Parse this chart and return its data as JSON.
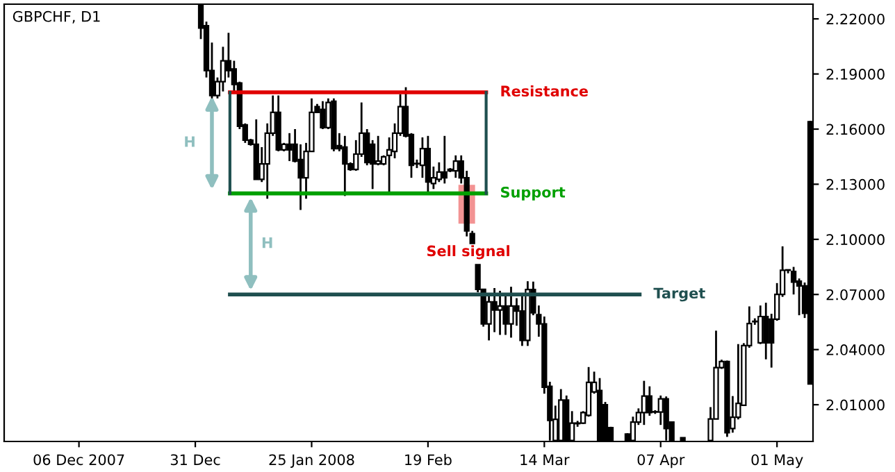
{
  "chart_data": {
    "type": "candlestick",
    "title": "GBPCHF, D1",
    "categories": [
      null,
      null,
      null,
      null,
      null,
      null,
      null,
      null,
      null,
      null,
      null,
      null,
      null,
      "06 Dec 2007",
      null,
      null,
      null,
      null,
      null,
      null,
      null,
      null,
      null,
      null,
      null,
      null,
      null,
      null,
      null,
      null,
      null,
      null,
      null,
      null,
      "31 Dec",
      null,
      null,
      null,
      null,
      null,
      null,
      null,
      null,
      null,
      null,
      null,
      null,
      null,
      null,
      null,
      null,
      null,
      null,
      null,
      null,
      "25 Jan 2008",
      null,
      null,
      null,
      null,
      null,
      null,
      null,
      null,
      null,
      null,
      null,
      null,
      null,
      null,
      null,
      null,
      null,
      null,
      null,
      null,
      "19 Feb",
      null,
      null,
      null,
      null,
      null,
      null,
      null,
      null,
      null,
      null,
      null,
      null,
      null,
      null,
      null,
      null,
      null,
      null,
      null,
      null,
      "14 Mar",
      null,
      null,
      null,
      null,
      null,
      null,
      null,
      null,
      null,
      null,
      null,
      null,
      null,
      null,
      null,
      null,
      null,
      null,
      null,
      null,
      "07 Apr",
      null,
      null,
      null,
      null,
      null,
      null,
      null,
      null,
      null,
      null,
      null,
      null,
      null,
      null,
      null,
      null,
      null,
      null,
      null,
      null,
      "01 May",
      null,
      null,
      null,
      null,
      null,
      null
    ],
    "ohlc": [
      null,
      null,
      null,
      null,
      null,
      null,
      null,
      null,
      null,
      null,
      null,
      null,
      null,
      null,
      null,
      null,
      null,
      null,
      null,
      null,
      null,
      null,
      null,
      null,
      null,
      null,
      null,
      null,
      null,
      null,
      null,
      null,
      null,
      null,
      null,
      [
        2.2275,
        2.2278,
        2.209,
        2.215
      ],
      [
        2.2162,
        2.2185,
        2.1881,
        2.1919
      ],
      [
        2.1919,
        2.2071,
        2.1767,
        2.1783
      ],
      [
        2.1783,
        2.1881,
        2.1767,
        2.1858
      ],
      [
        2.1858,
        2.2048,
        2.1805,
        2.1972
      ],
      [
        2.1972,
        2.2124,
        2.1881,
        2.1919
      ],
      [
        2.1927,
        2.1972,
        2.1805,
        2.1843
      ],
      [
        2.1851,
        2.1858,
        2.16,
        2.1616
      ],
      [
        2.1623,
        2.1631,
        2.1525,
        2.154
      ],
      [
        2.154,
        2.1547,
        2.151,
        2.1517
      ],
      [
        2.1517,
        2.1653,
        2.1327,
        2.1327
      ],
      [
        2.1327,
        2.1502,
        2.1312,
        2.1411
      ],
      [
        2.1411,
        2.1631,
        2.1221,
        2.1578
      ],
      [
        2.1578,
        2.1783,
        2.1563,
        2.1691
      ],
      [
        2.1691,
        2.1783,
        2.1479,
        2.1487
      ],
      [
        2.1487,
        2.1525,
        2.1479,
        2.1517
      ],
      [
        2.1517,
        2.1578,
        2.1426,
        2.1487
      ],
      [
        2.1517,
        2.16,
        2.1419,
        2.1426
      ],
      [
        2.1434,
        2.1517,
        2.116,
        2.1335
      ],
      [
        2.1335,
        2.1525,
        2.1221,
        2.1479
      ],
      [
        2.1479,
        2.1767,
        2.1479,
        2.1691
      ],
      [
        2.1722,
        2.1737,
        2.169,
        2.1691
      ],
      [
        2.1707,
        2.1752,
        2.16,
        2.1608
      ],
      [
        2.1608,
        2.1767,
        2.16,
        2.1745
      ],
      [
        2.1752,
        2.1767,
        2.1479,
        2.1494
      ],
      [
        2.151,
        2.1578,
        2.1479,
        2.1494
      ],
      [
        2.1502,
        2.1563,
        2.1236,
        2.1411
      ],
      [
        2.1411,
        2.1419,
        2.1373,
        2.138
      ],
      [
        2.138,
        2.154,
        2.1373,
        2.1464
      ],
      [
        2.1464,
        2.1745,
        2.1449,
        2.1578
      ],
      [
        2.1578,
        2.16,
        2.1403,
        2.1418
      ],
      [
        2.1517,
        2.154,
        2.1274,
        2.1411
      ],
      [
        2.1411,
        2.1563,
        2.1403,
        2.1426
      ],
      [
        2.1411,
        2.1457,
        2.1403,
        2.1449
      ],
      [
        2.1457,
        2.1555,
        2.1259,
        2.1487
      ],
      [
        2.1479,
        2.1631,
        2.1441,
        2.1578
      ],
      [
        2.1578,
        2.179,
        2.1563,
        2.1722
      ],
      [
        2.1722,
        2.1828,
        2.1555,
        2.1563
      ],
      [
        2.157,
        2.1578,
        2.1335,
        2.1403
      ],
      [
        2.1411,
        2.1434,
        2.1388,
        2.1411
      ],
      [
        2.1403,
        2.1555,
        2.1335,
        2.1494
      ],
      [
        2.1494,
        2.1563,
        2.1251,
        2.1312
      ],
      [
        2.1304,
        2.1396,
        2.1274,
        2.1335
      ],
      [
        2.1327,
        2.1419,
        2.1312,
        2.1366
      ],
      [
        2.1366,
        2.1563,
        2.1304,
        2.1335
      ],
      [
        2.1373,
        2.1388,
        2.1366,
        2.1381
      ],
      [
        2.1373,
        2.1457,
        2.1335,
        2.1426
      ],
      [
        2.1426,
        2.1457,
        2.1304,
        2.1335
      ],
      [
        2.1335,
        2.1373,
        2.1016,
        2.1046
      ],
      [
        2.1031,
        2.1046,
        2.0978,
        2.0978
      ],
      [
        2.0862,
        2.0862,
        2.0712,
        2.0728
      ],
      [
        2.0728,
        2.073,
        2.0525,
        2.054
      ],
      [
        2.054,
        2.069,
        2.045,
        2.066
      ],
      [
        2.066,
        2.0735,
        2.0495,
        2.0615
      ],
      [
        2.0615,
        2.072,
        2.048,
        2.0637
      ],
      [
        2.0637,
        2.0705,
        2.048,
        2.054
      ],
      [
        2.054,
        2.0742,
        2.0465,
        2.0637
      ],
      [
        2.0637,
        2.068,
        2.053,
        2.061
      ],
      [
        2.061,
        2.0705,
        2.042,
        2.045
      ],
      [
        2.045,
        2.0772,
        2.042,
        2.0727
      ],
      [
        2.0727,
        2.077,
        2.0587,
        2.06
      ],
      [
        2.059,
        2.064,
        2.047,
        2.054
      ],
      [
        2.054,
        2.058,
        2.016,
        2.0195
      ],
      [
        2.02,
        2.0225,
        1.9905,
        2.0015
      ],
      [
        1.9905,
        2.0095,
        1.9905,
        2.002
      ],
      [
        1.9905,
        2.0185,
        1.9905,
        2.0125
      ],
      [
        2.0125,
        2.015,
        1.9905,
        1.9905
      ],
      [
        1.9905,
        2.0065,
        1.9905,
        2.0
      ],
      [
        1.9997,
        2.0012,
        1.998,
        2.0
      ],
      [
        2.0,
        2.0065,
        1.9995,
        2.0057
      ],
      [
        2.0042,
        2.0305,
        2.0035,
        2.0222
      ],
      [
        2.017,
        2.028,
        2.016,
        2.0222
      ],
      [
        2.0177,
        2.0245,
        1.9905,
        1.9905
      ],
      [
        2.01,
        2.0115,
        1.9905,
        1.9905
      ],
      [
        1.9975,
        1.998,
        1.9905,
        1.9905
      ],
      null,
      null,
      [
        1.994,
        1.9945,
        1.9905,
        1.9905
      ],
      [
        1.9905,
        2.0035,
        1.9905,
        2.0005
      ],
      [
        2.0005,
        2.008,
        1.999,
        2.0057
      ],
      [
        2.0057,
        2.023,
        1.999,
        2.0147
      ],
      [
        2.0147,
        2.02,
        2.004,
        2.0057
      ],
      [
        2.0062,
        2.007,
        2.005,
        2.006
      ],
      [
        2.006,
        2.015,
        1.999,
        2.0132
      ],
      [
        2.0132,
        2.0145,
        1.9905,
        1.997
      ],
      [
        2.0005,
        2.0005,
        1.9905,
        1.9905
      ],
      null,
      [
        1.992,
        1.992,
        1.9905,
        1.9905
      ],
      null,
      null,
      null,
      null,
      [
        1.9905,
        2.0087,
        1.9905,
        2.0022
      ],
      [
        2.0022,
        2.0503,
        2.0022,
        2.0302
      ],
      [
        2.0302,
        2.0345,
        2.0295,
        2.0335
      ],
      [
        2.0335,
        2.034,
        1.9925,
        1.9948
      ],
      [
        1.997,
        2.0147,
        1.9948,
        2.0032
      ],
      [
        2.0032,
        2.043,
        2.002,
        2.0107
      ],
      [
        2.0097,
        2.0435,
        2.0097,
        2.0422
      ],
      [
        2.0422,
        2.0635,
        2.041,
        2.0542
      ],
      [
        2.0552,
        2.057,
        2.0535,
        2.0552
      ],
      [
        2.0437,
        2.064,
        2.043,
        2.058
      ],
      [
        2.058,
        2.0655,
        2.0347,
        2.0437
      ],
      [
        2.0565,
        2.0595,
        2.0302,
        2.0437
      ],
      [
        2.0565,
        2.0762,
        2.0557,
        2.07
      ],
      [
        2.07,
        2.0962,
        2.0687,
        2.0832
      ],
      [
        2.0832,
        2.0837,
        2.0815,
        2.0832
      ],
      [
        2.0825,
        2.085,
        2.07,
        2.0767
      ],
      [
        2.0772,
        2.0787,
        2.0587,
        2.0747
      ],
      [
        2.0747,
        2.0765,
        2.0572,
        2.0597
      ],
      [
        2.164,
        2.1645,
        2.0213,
        2.0213
      ]
    ],
    "color": "#000000",
    "ylim": [
      1.99,
      2.228
    ],
    "yticks": [
      {
        "value": 2.01,
        "label": "2.01000"
      },
      {
        "value": 2.04,
        "label": "2.04000"
      },
      {
        "value": 2.07,
        "label": "2.07000"
      },
      {
        "value": 2.1,
        "label": "2.10000"
      },
      {
        "value": 2.13,
        "label": "2.13000"
      },
      {
        "value": 2.16,
        "label": "2.16000"
      },
      {
        "value": 2.19,
        "label": "2.19000"
      },
      {
        "value": 2.22,
        "label": "2.22000"
      }
    ],
    "ref_lines": [
      {
        "axis": "y",
        "value": 2.18,
        "label": "Resistance",
        "color": "#e00000"
      },
      {
        "axis": "y",
        "value": 2.125,
        "label": "Support",
        "color": "#00a000"
      },
      {
        "axis": "y",
        "value": 2.07,
        "label": "Target",
        "color": "#1f4f4f"
      }
    ],
    "annotations": [
      "H",
      "H",
      "Sell signal"
    ],
    "grid": false
  }
}
